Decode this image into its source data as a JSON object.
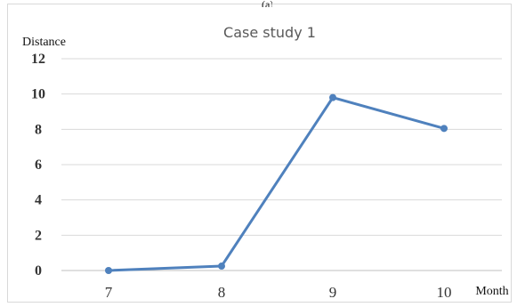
{
  "figure": {
    "caption_mark": "(a)"
  },
  "chart_data": {
    "type": "line",
    "title": "Case study 1",
    "xlabel": "Month",
    "ylabel": "Distance",
    "categories": [
      "7",
      "8",
      "9",
      "10"
    ],
    "series": [
      {
        "values": [
          0,
          0.25,
          9.8,
          8.05
        ],
        "color": "#4f81bd"
      }
    ],
    "ylim": [
      0,
      12
    ],
    "yticks": [
      0,
      2,
      4,
      6,
      8,
      10,
      12
    ],
    "grid": true,
    "legend": "none"
  }
}
